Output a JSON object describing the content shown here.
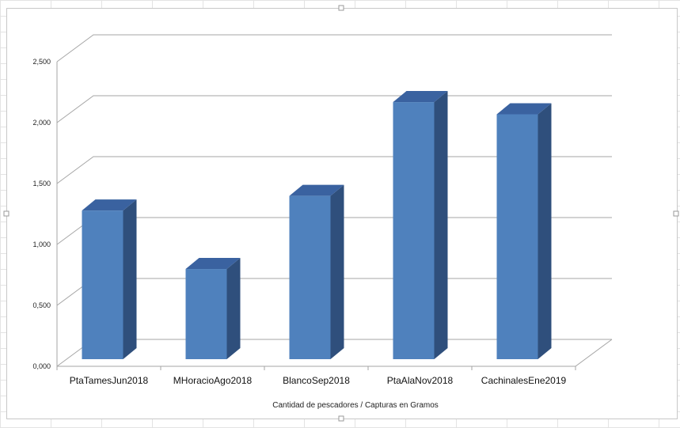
{
  "chart_data": {
    "type": "bar",
    "style": "3d-column",
    "categories": [
      "PtaTamesJun2018",
      "MHoracioAgo2018",
      "BlancoSep2018",
      "PtaAlaNov2018",
      "CachinalesEne2019"
    ],
    "values": [
      1.22,
      0.74,
      1.34,
      2.11,
      2.01
    ],
    "title": "",
    "xlabel": "Cantidad de pescadores / Capturas en Gramos",
    "ylabel": "",
    "ylim": [
      0,
      2.5
    ],
    "yticks": [
      "0,000",
      "0,500",
      "1,000",
      "1,500",
      "2,000",
      "2,500"
    ],
    "grid": true,
    "legend": "none",
    "colors": {
      "front": "#4f81bd",
      "side": "#2f4f7c",
      "top": "#3a62a0",
      "grid": "#a6a6a6"
    }
  }
}
